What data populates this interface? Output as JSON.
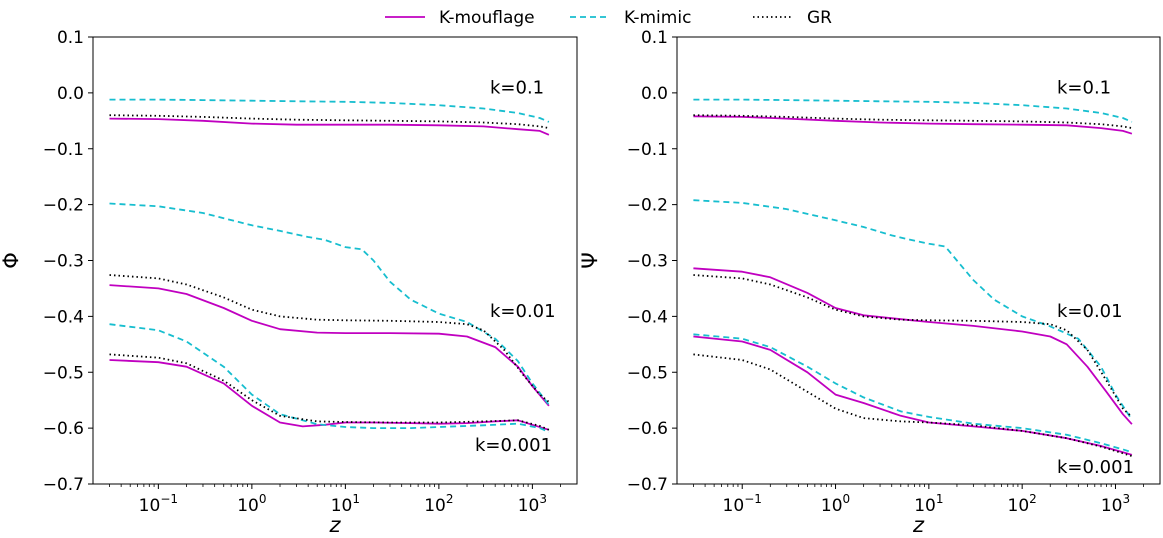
{
  "legend": [
    {
      "name": "K-mouflage",
      "color": "#c000c0",
      "dash": "solid"
    },
    {
      "name": "K-mimic",
      "color": "#17becf",
      "dash": "dashed"
    },
    {
      "name": "GR",
      "color": "#000000",
      "dash": "dotted"
    }
  ],
  "chart_data": [
    {
      "type": "line",
      "xlabel": "z",
      "ylabel": "Φ",
      "xscale": "log",
      "xlim": [
        0.02,
        3000
      ],
      "ylim": [
        -0.7,
        0.1
      ],
      "xticks": [
        "10^-1",
        "10^0",
        "10^1",
        "10^2",
        "10^3"
      ],
      "yticks": [
        "0.1",
        "0.0",
        "−0.1",
        "−0.2",
        "−0.3",
        "−0.4",
        "−0.5",
        "−0.6",
        "−0.7"
      ],
      "annotations": [
        {
          "text": "k=0.1",
          "at": [
            1000,
            0.01
          ]
        },
        {
          "text": "k=0.01",
          "at": [
            1000,
            -0.39
          ]
        },
        {
          "text": "k=0.001",
          "at": [
            800,
            -0.63
          ]
        }
      ],
      "series": [
        {
          "name": "K-mouflage",
          "k": "k=0.1",
          "x": [
            0.03,
            0.1,
            0.3,
            1,
            3,
            10,
            30,
            100,
            300,
            700,
            1200,
            1500
          ],
          "y": [
            -0.046,
            -0.047,
            -0.05,
            -0.055,
            -0.057,
            -0.057,
            -0.057,
            -0.058,
            -0.06,
            -0.065,
            -0.068,
            -0.075
          ]
        },
        {
          "name": "K-mimic",
          "k": "k=0.1",
          "x": [
            0.03,
            0.1,
            0.3,
            1,
            3,
            10,
            30,
            100,
            300,
            700,
            1200,
            1500
          ],
          "y": [
            -0.012,
            -0.012,
            -0.013,
            -0.014,
            -0.015,
            -0.016,
            -0.018,
            -0.022,
            -0.028,
            -0.036,
            -0.045,
            -0.052
          ]
        },
        {
          "name": "GR",
          "k": "k=0.1",
          "x": [
            0.03,
            0.1,
            0.3,
            1,
            3,
            10,
            30,
            100,
            300,
            700,
            1200,
            1500
          ],
          "y": [
            -0.04,
            -0.041,
            -0.043,
            -0.046,
            -0.048,
            -0.049,
            -0.05,
            -0.051,
            -0.053,
            -0.056,
            -0.06,
            -0.063
          ]
        },
        {
          "name": "K-mouflage",
          "k": "k=0.01",
          "x": [
            0.03,
            0.1,
            0.2,
            0.5,
            1,
            2,
            5,
            10,
            30,
            100,
            200,
            400,
            700,
            1000,
            1500
          ],
          "y": [
            -0.344,
            -0.35,
            -0.36,
            -0.385,
            -0.408,
            -0.423,
            -0.429,
            -0.43,
            -0.43,
            -0.431,
            -0.436,
            -0.455,
            -0.49,
            -0.525,
            -0.56
          ]
        },
        {
          "name": "K-mimic",
          "k": "k=0.01",
          "x": [
            0.03,
            0.1,
            0.3,
            1,
            2,
            4,
            6,
            10,
            15,
            20,
            30,
            50,
            100,
            200,
            400,
            700,
            1000,
            1500
          ],
          "y": [
            -0.198,
            -0.203,
            -0.215,
            -0.237,
            -0.247,
            -0.258,
            -0.263,
            -0.276,
            -0.28,
            -0.3,
            -0.338,
            -0.37,
            -0.395,
            -0.41,
            -0.44,
            -0.48,
            -0.52,
            -0.558
          ]
        },
        {
          "name": "GR",
          "k": "k=0.01",
          "x": [
            0.03,
            0.1,
            0.2,
            0.5,
            1,
            2,
            5,
            10,
            30,
            100,
            200,
            300,
            500,
            800,
            1200,
            1500
          ],
          "y": [
            -0.326,
            -0.332,
            -0.343,
            -0.366,
            -0.388,
            -0.4,
            -0.406,
            -0.407,
            -0.408,
            -0.41,
            -0.414,
            -0.425,
            -0.46,
            -0.505,
            -0.54,
            -0.553
          ]
        },
        {
          "name": "K-mouflage",
          "k": "k=0.001",
          "x": [
            0.03,
            0.1,
            0.2,
            0.5,
            1,
            2,
            3.5,
            6,
            10,
            20,
            50,
            100,
            200,
            400,
            700,
            1000,
            1500
          ],
          "y": [
            -0.478,
            -0.482,
            -0.49,
            -0.52,
            -0.56,
            -0.59,
            -0.597,
            -0.594,
            -0.59,
            -0.59,
            -0.591,
            -0.592,
            -0.591,
            -0.588,
            -0.586,
            -0.594,
            -0.603
          ]
        },
        {
          "name": "K-mimic",
          "k": "k=0.001",
          "x": [
            0.03,
            0.1,
            0.2,
            0.5,
            1,
            2,
            5,
            10,
            20,
            50,
            100,
            300,
            700,
            1200,
            1500
          ],
          "y": [
            -0.414,
            -0.425,
            -0.445,
            -0.49,
            -0.54,
            -0.575,
            -0.593,
            -0.598,
            -0.6,
            -0.6,
            -0.598,
            -0.595,
            -0.592,
            -0.6,
            -0.607
          ]
        },
        {
          "name": "GR",
          "k": "k=0.001",
          "x": [
            0.03,
            0.1,
            0.2,
            0.5,
            1,
            2,
            5,
            10,
            30,
            100,
            300,
            700,
            1200,
            1500
          ],
          "y": [
            -0.468,
            -0.474,
            -0.484,
            -0.515,
            -0.55,
            -0.578,
            -0.588,
            -0.589,
            -0.59,
            -0.59,
            -0.588,
            -0.586,
            -0.596,
            -0.603
          ]
        }
      ]
    },
    {
      "type": "line",
      "xlabel": "z",
      "ylabel": "Ψ",
      "xscale": "log",
      "xlim": [
        0.02,
        3000
      ],
      "ylim": [
        -0.7,
        0.1
      ],
      "xticks": [
        "10^-1",
        "10^0",
        "10^1",
        "10^2",
        "10^3"
      ],
      "yticks": [
        "0.1",
        "0.0",
        "−0.1",
        "−0.2",
        "−0.3",
        "−0.4",
        "−0.5",
        "−0.6",
        "−0.7"
      ],
      "annotations": [
        {
          "text": "k=0.1",
          "at": [
            1000,
            0.01
          ]
        },
        {
          "text": "k=0.01",
          "at": [
            1000,
            -0.39
          ]
        },
        {
          "text": "k=0.001",
          "at": [
            800,
            -0.67
          ]
        }
      ],
      "series": [
        {
          "name": "K-mouflage",
          "k": "k=0.1",
          "x": [
            0.03,
            0.1,
            0.3,
            1,
            3,
            10,
            30,
            100,
            300,
            700,
            1200,
            1500
          ],
          "y": [
            -0.042,
            -0.043,
            -0.046,
            -0.05,
            -0.053,
            -0.055,
            -0.056,
            -0.057,
            -0.058,
            -0.063,
            -0.068,
            -0.073
          ]
        },
        {
          "name": "K-mimic",
          "k": "k=0.1",
          "x": [
            0.03,
            0.1,
            0.3,
            1,
            3,
            10,
            30,
            100,
            300,
            700,
            1200,
            1500
          ],
          "y": [
            -0.012,
            -0.012,
            -0.013,
            -0.014,
            -0.015,
            -0.016,
            -0.018,
            -0.022,
            -0.028,
            -0.036,
            -0.045,
            -0.052
          ]
        },
        {
          "name": "GR",
          "k": "k=0.1",
          "x": [
            0.03,
            0.1,
            0.3,
            1,
            3,
            10,
            30,
            100,
            300,
            700,
            1200,
            1500
          ],
          "y": [
            -0.04,
            -0.041,
            -0.043,
            -0.046,
            -0.048,
            -0.049,
            -0.05,
            -0.051,
            -0.053,
            -0.056,
            -0.06,
            -0.063
          ]
        },
        {
          "name": "K-mouflage",
          "k": "k=0.01",
          "x": [
            0.03,
            0.1,
            0.2,
            0.5,
            1,
            2,
            5,
            10,
            30,
            100,
            200,
            300,
            500,
            800,
            1200,
            1500
          ],
          "y": [
            -0.314,
            -0.32,
            -0.33,
            -0.358,
            -0.385,
            -0.398,
            -0.405,
            -0.41,
            -0.417,
            -0.427,
            -0.436,
            -0.45,
            -0.49,
            -0.535,
            -0.575,
            -0.593
          ]
        },
        {
          "name": "K-mimic",
          "k": "k=0.01",
          "x": [
            0.03,
            0.1,
            0.3,
            1,
            2,
            4,
            6,
            10,
            15,
            20,
            30,
            50,
            100,
            200,
            400,
            700,
            1000,
            1500
          ],
          "y": [
            -0.192,
            -0.197,
            -0.208,
            -0.228,
            -0.24,
            -0.255,
            -0.262,
            -0.27,
            -0.275,
            -0.3,
            -0.335,
            -0.37,
            -0.4,
            -0.418,
            -0.44,
            -0.49,
            -0.54,
            -0.585
          ]
        },
        {
          "name": "GR",
          "k": "k=0.01",
          "x": [
            0.03,
            0.1,
            0.2,
            0.5,
            1,
            2,
            5,
            10,
            30,
            100,
            200,
            300,
            500,
            800,
            1200,
            1500
          ],
          "y": [
            -0.326,
            -0.332,
            -0.343,
            -0.366,
            -0.388,
            -0.4,
            -0.406,
            -0.407,
            -0.408,
            -0.41,
            -0.414,
            -0.425,
            -0.46,
            -0.515,
            -0.565,
            -0.58
          ]
        },
        {
          "name": "K-mouflage",
          "k": "k=0.001",
          "x": [
            0.03,
            0.1,
            0.2,
            0.5,
            1,
            2,
            5,
            10,
            30,
            100,
            300,
            700,
            1200,
            1500
          ],
          "y": [
            -0.436,
            -0.445,
            -0.46,
            -0.5,
            -0.54,
            -0.555,
            -0.578,
            -0.59,
            -0.597,
            -0.605,
            -0.618,
            -0.632,
            -0.643,
            -0.648
          ]
        },
        {
          "name": "K-mimic",
          "k": "k=0.001",
          "x": [
            0.03,
            0.1,
            0.2,
            0.5,
            1,
            2,
            5,
            10,
            30,
            100,
            300,
            700,
            1200,
            1500
          ],
          "y": [
            -0.432,
            -0.44,
            -0.455,
            -0.49,
            -0.52,
            -0.545,
            -0.57,
            -0.58,
            -0.592,
            -0.6,
            -0.612,
            -0.627,
            -0.638,
            -0.643
          ]
        },
        {
          "name": "GR",
          "k": "k=0.001",
          "x": [
            0.03,
            0.1,
            0.2,
            0.5,
            1,
            2,
            5,
            10,
            30,
            100,
            300,
            700,
            1200,
            1500
          ],
          "y": [
            -0.468,
            -0.478,
            -0.495,
            -0.535,
            -0.565,
            -0.582,
            -0.588,
            -0.59,
            -0.595,
            -0.605,
            -0.618,
            -0.633,
            -0.645,
            -0.65
          ]
        }
      ]
    }
  ]
}
